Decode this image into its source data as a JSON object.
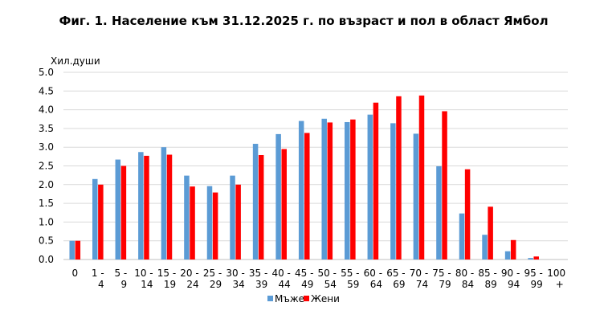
{
  "chart_data": {
    "type": "bar",
    "title": "Фиг. 1. Население към 31.12.2025  г. по възраст и пол в област Ямбол",
    "ylabel": "Хил.души",
    "xlabel": "",
    "ylim": [
      0,
      5
    ],
    "yticks": [
      "0.0",
      "0.5",
      "1.0",
      "1.5",
      "2.0",
      "2.5",
      "3.0",
      "3.5",
      "4.0",
      "4.5",
      "5.0"
    ],
    "grid": true,
    "legend_position": "bottom",
    "categories": [
      {
        "line1": "0",
        "line2": ""
      },
      {
        "line1": "1 -",
        "line2": "4"
      },
      {
        "line1": "5 -",
        "line2": "9"
      },
      {
        "line1": "10 -",
        "line2": "14"
      },
      {
        "line1": "15 -",
        "line2": "19"
      },
      {
        "line1": "20 -",
        "line2": "24"
      },
      {
        "line1": "25 -",
        "line2": "29"
      },
      {
        "line1": "30 -",
        "line2": "34"
      },
      {
        "line1": "35 -",
        "line2": "39"
      },
      {
        "line1": "40 -",
        "line2": "44"
      },
      {
        "line1": "45 -",
        "line2": "49"
      },
      {
        "line1": "50 -",
        "line2": "54"
      },
      {
        "line1": "55 -",
        "line2": "59"
      },
      {
        "line1": "60 -",
        "line2": "64"
      },
      {
        "line1": "65 -",
        "line2": "69"
      },
      {
        "line1": "70 -",
        "line2": "74"
      },
      {
        "line1": "75 -",
        "line2": "79"
      },
      {
        "line1": "80 -",
        "line2": "84"
      },
      {
        "line1": "85 -",
        "line2": "89"
      },
      {
        "line1": "90 -",
        "line2": "94"
      },
      {
        "line1": "95 -",
        "line2": "99"
      },
      {
        "line1": "100",
        "line2": "+"
      }
    ],
    "series": [
      {
        "name": "Мъже",
        "color": "#5b9bd5",
        "values": [
          0.5,
          2.15,
          2.67,
          2.87,
          3.0,
          2.24,
          1.96,
          2.24,
          3.09,
          3.35,
          3.7,
          3.76,
          3.67,
          3.87,
          3.64,
          3.36,
          2.49,
          1.23,
          0.66,
          0.22,
          0.04,
          0.0
        ]
      },
      {
        "name": "Жени",
        "color": "#ff0000",
        "values": [
          0.5,
          2.0,
          2.5,
          2.77,
          2.8,
          1.95,
          1.79,
          2.0,
          2.79,
          2.95,
          3.38,
          3.66,
          3.74,
          4.19,
          4.36,
          4.38,
          3.96,
          2.41,
          1.41,
          0.52,
          0.08,
          0.0
        ]
      }
    ]
  }
}
